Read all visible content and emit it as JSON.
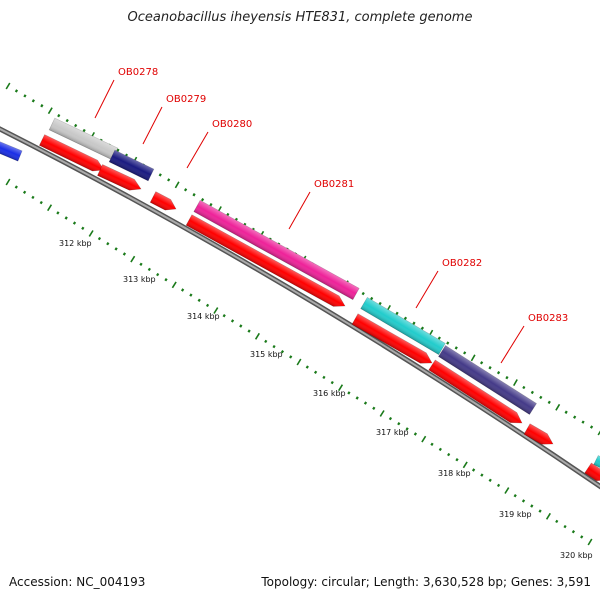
{
  "title": "Oceanobacillus iheyensis HTE831, complete genome",
  "footer": {
    "accession": "Accession: NC_004193",
    "stats": "Topology: circular; Length: 3,630,528 bp; Genes: 3,591"
  },
  "colors": {
    "backbone": "#808080",
    "tick": "#1a7a1a",
    "gene_label": "#e00000",
    "cds": "#ff0000"
  },
  "kbp_labels": [
    "312 kbp",
    "313 kbp",
    "314 kbp",
    "315 kbp",
    "316 kbp",
    "317 kbp",
    "318 kbp",
    "319 kbp",
    "320 kbp"
  ],
  "genes": [
    {
      "label": "OB0278",
      "color": "#c8c8c8"
    },
    {
      "label": "OB0279",
      "color": "#1a1a80"
    },
    {
      "label": "OB0280",
      "color": ""
    },
    {
      "label": "OB0281",
      "color": "#ee2299"
    },
    {
      "label": "OB0282",
      "color": "#22cccc"
    },
    {
      "label": "OB0283",
      "color": "#443a88"
    }
  ],
  "edge_features": [
    {
      "color": "#1a2ee6"
    },
    {
      "color": "#22cccc"
    }
  ]
}
